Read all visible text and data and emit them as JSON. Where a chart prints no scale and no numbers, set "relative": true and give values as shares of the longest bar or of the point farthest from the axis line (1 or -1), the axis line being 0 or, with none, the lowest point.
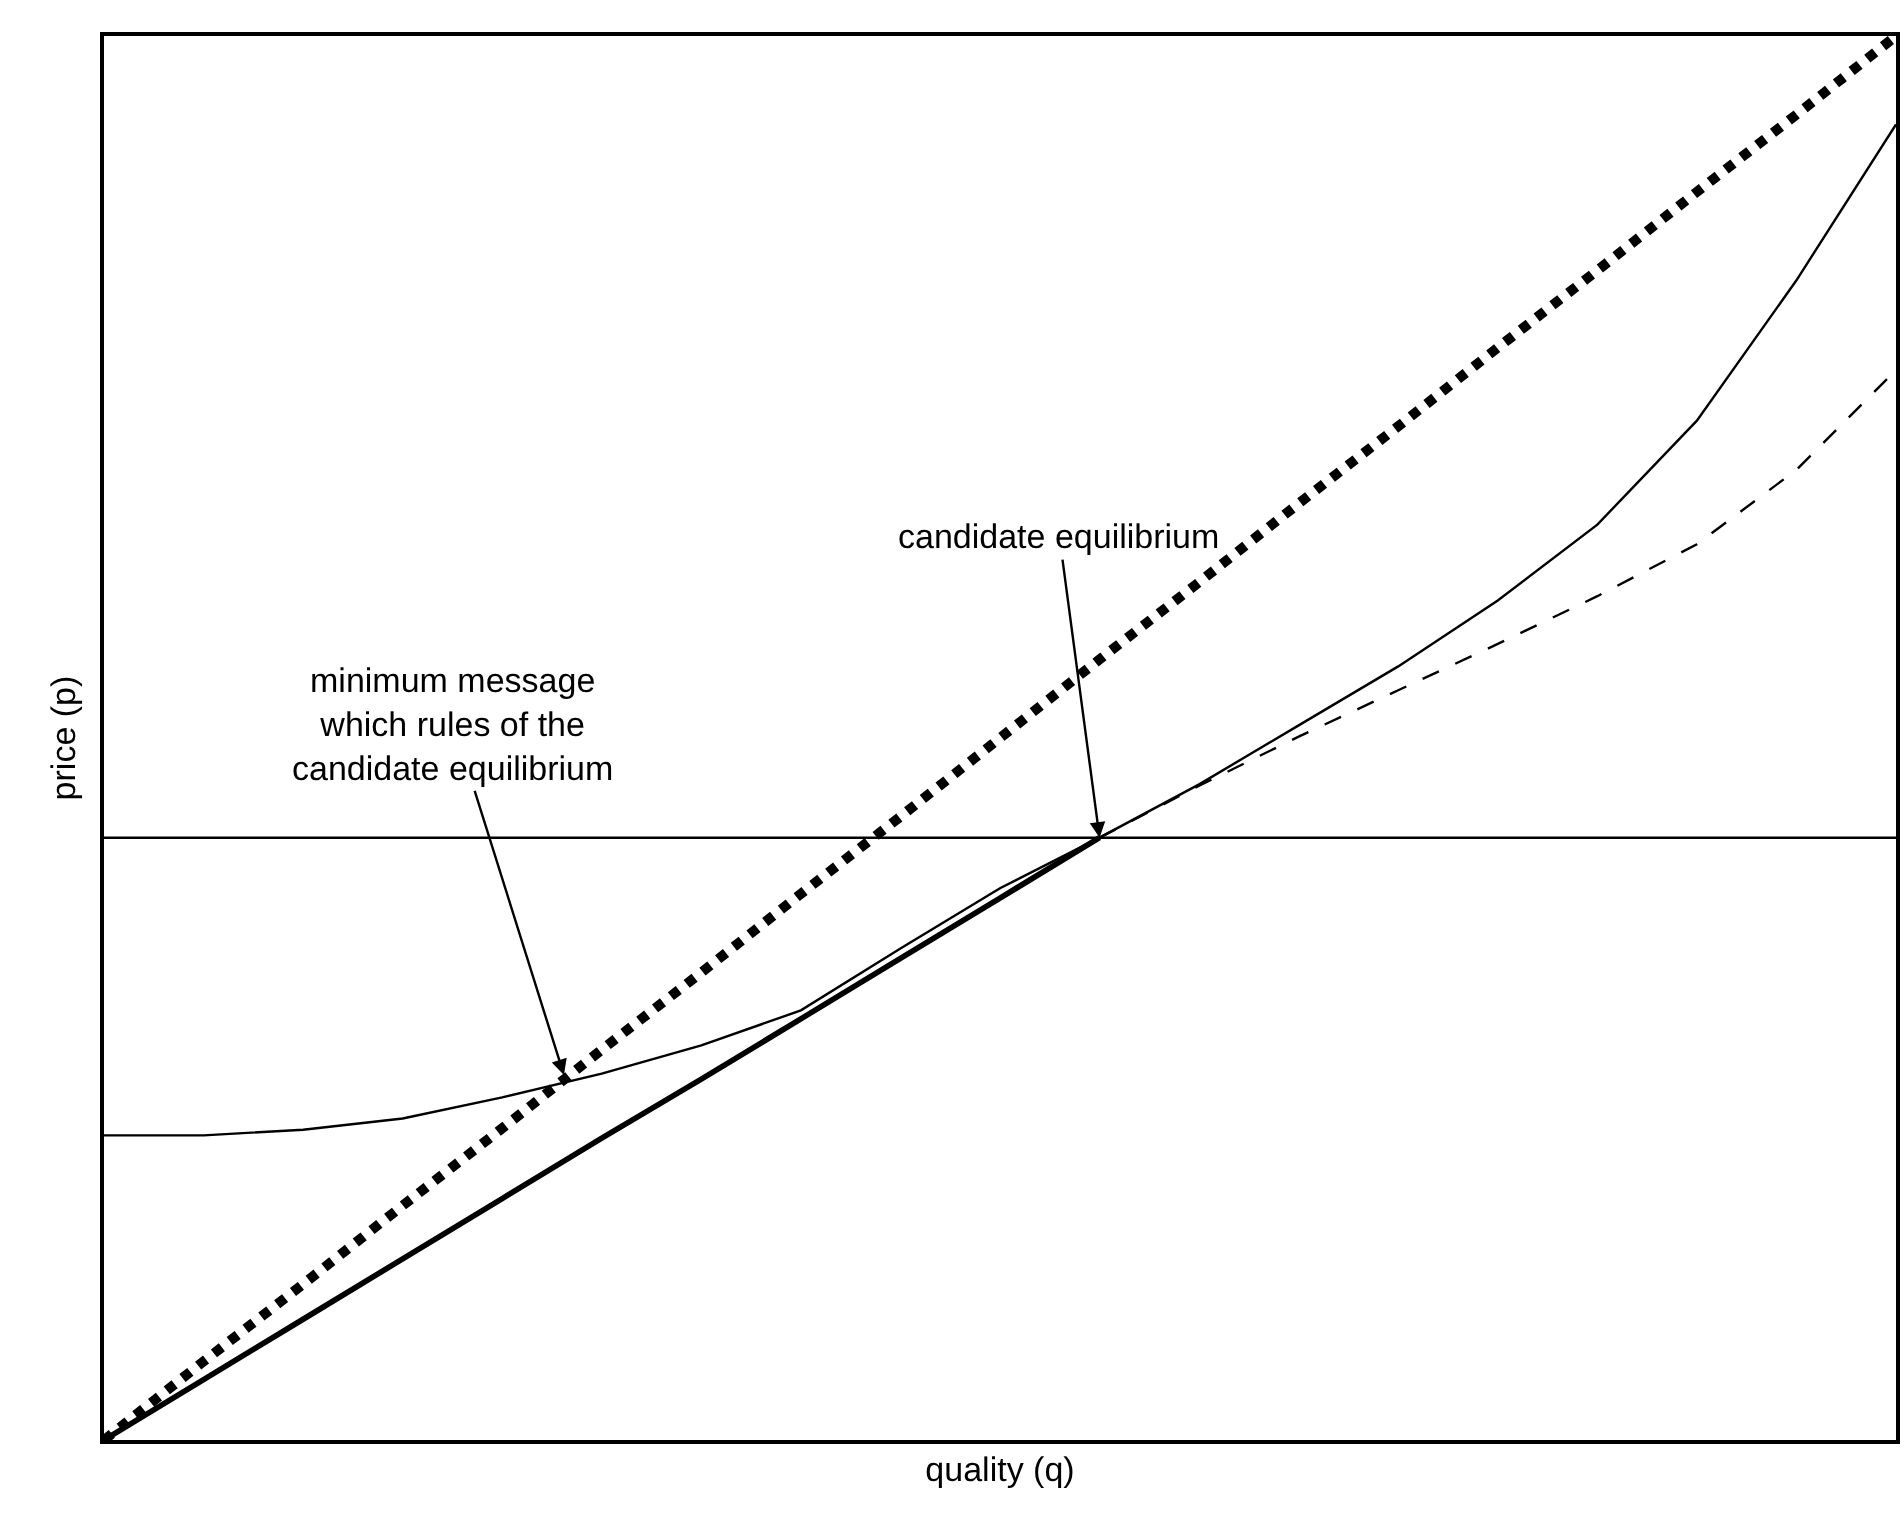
{
  "chart_data": {
    "type": "line",
    "relative": true,
    "xlabel": "quality (q)",
    "ylabel": "price (p)",
    "tick_labels": false,
    "marker": "none",
    "categories": [
      null,
      null,
      null,
      null,
      null,
      null,
      null,
      null,
      null,
      null,
      null,
      null,
      null,
      null,
      null,
      null,
      null,
      null,
      null
    ],
    "series": [
      {
        "color": "#000000",
        "line_style": "dotted",
        "values": [
          0,
          0.056,
          0.111,
          0.167,
          0.222,
          0.278,
          0.333,
          0.389,
          0.444,
          0.5,
          0.556,
          0.611,
          0.667,
          0.722,
          0.778,
          0.833,
          0.889,
          0.944,
          1
        ]
      },
      {
        "color": "#000000",
        "line_style": "solid",
        "values": [
          0.217,
          0.217,
          0.221,
          0.229,
          0.244,
          0.261,
          0.281,
          0.306,
          0.35,
          0.393,
          0.429,
          0.467,
          0.509,
          0.551,
          0.598,
          0.652,
          0.726,
          0.826,
          0.937
        ]
      },
      {
        "color": "#000000",
        "line_style": "dashed",
        "values": [
          null,
          null,
          null,
          null,
          null,
          null,
          null,
          null,
          null,
          null,
          0.429,
          0.466,
          0.501,
          0.534,
          0.567,
          0.601,
          0.638,
          0.691,
          0.762
        ]
      },
      {
        "color": "#000000",
        "line_style": "solid",
        "values": [
          0,
          0.043,
          0.086,
          0.129,
          0.172,
          0.215,
          0.257,
          0.3,
          0.343,
          0.386,
          0.429,
          null,
          null,
          null,
          null,
          null,
          null,
          null,
          null
        ]
      }
    ],
    "ref_lines": [
      {
        "axis": "y",
        "value": 0.429,
        "color": "#000000"
      }
    ],
    "annotations": [
      "candidate equilibrium",
      "minimum message\nwhich rules of the\ncandidate equilibrium"
    ]
  }
}
